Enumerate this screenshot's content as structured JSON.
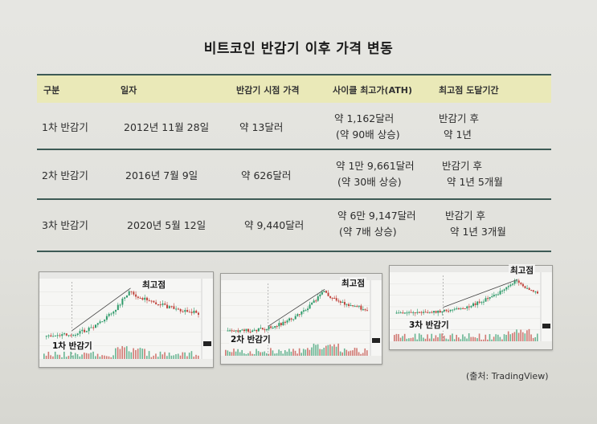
{
  "title": "비트코인 반감기 이후 가격 변동",
  "table": {
    "headers": [
      "구분",
      "일자",
      "반감기 시점 가격",
      "사이클 최고가(ATH)",
      "최고점 도달기간"
    ],
    "rows": [
      {
        "label": "1차 반감기",
        "date": "2012년 11월 28일",
        "price": "약 13달러",
        "ath_1": "약 1,162달러",
        "ath_2": "(약 90배 상승)",
        "period_1": "반감기 후",
        "period_2": "약 1년"
      },
      {
        "label": "2차 반감기",
        "date": "2016년 7월 9일",
        "price": "약 626달러",
        "ath_1": "약 1만 9,661달러",
        "ath_2": "(약 30배 상승)",
        "period_1": "반감기 후",
        "period_2": "약 1년 5개월"
      },
      {
        "label": "3차 반감기",
        "date": "2020년 5월 12일",
        "price": "약 9,440달러",
        "ath_1": "약 6만 9,147달러",
        "ath_2": "(약 7배 상승)",
        "period_1": "반감기 후",
        "period_2": "약 1년 3개월"
      }
    ]
  },
  "charts": [
    {
      "halving_label": "1차 반감기",
      "peak_label": "최고점"
    },
    {
      "halving_label": "2차 반감기",
      "peak_label": "최고점"
    },
    {
      "halving_label": "3차 반감기",
      "peak_label": "최고점"
    }
  ],
  "source": "(출처: TradingView)",
  "colors": {
    "header_bg": "#eae9b8",
    "rule": "#3d5a55",
    "candle_up": "#2e9a6a",
    "candle_down": "#c0443c"
  }
}
